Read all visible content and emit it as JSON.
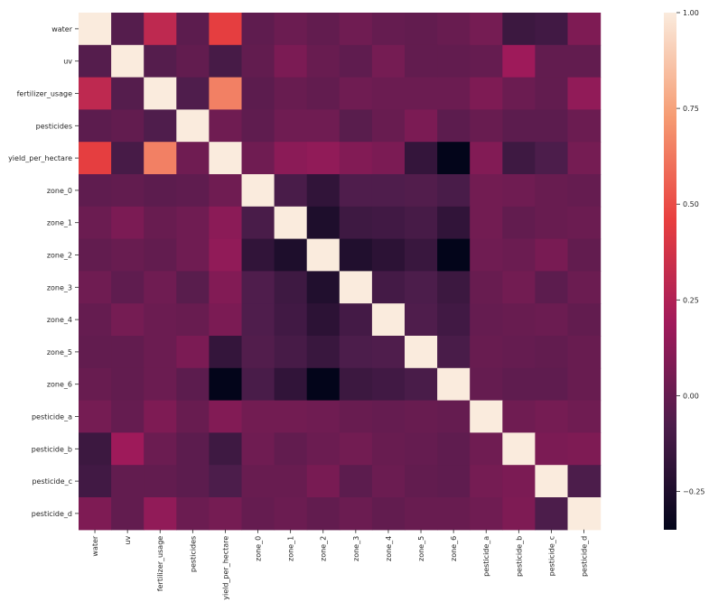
{
  "chart_data": {
    "type": "heatmap",
    "title": "",
    "xlabel": "",
    "ylabel": "",
    "row_labels": [
      "water",
      "uv",
      "fertilizer_usage",
      "pesticides",
      "yield_per_hectare",
      "zone_0",
      "zone_1",
      "zone_2",
      "zone_3",
      "zone_4",
      "zone_5",
      "zone_6",
      "pesticide_a",
      "pesticide_b",
      "pesticide_c",
      "pesticide_d"
    ],
    "col_labels": [
      "water",
      "uv",
      "fertilizer_usage",
      "pesticides",
      "yield_per_hectare",
      "zone_0",
      "zone_1",
      "zone_2",
      "zone_3",
      "zone_4",
      "zone_5",
      "zone_6",
      "pesticide_a",
      "pesticide_b",
      "pesticide_c",
      "pesticide_d"
    ],
    "values": [
      [
        1.0,
        -0.05,
        0.3,
        -0.03,
        0.45,
        -0.02,
        0.02,
        -0.01,
        0.03,
        0.0,
        -0.01,
        0.01,
        0.05,
        -0.14,
        -0.12,
        0.08
      ],
      [
        -0.05,
        1.0,
        -0.05,
        -0.01,
        -0.1,
        -0.01,
        0.07,
        0.01,
        -0.02,
        0.05,
        -0.01,
        -0.01,
        0.0,
        0.18,
        -0.01,
        -0.01
      ],
      [
        0.3,
        -0.05,
        1.0,
        -0.07,
        0.65,
        -0.03,
        0.01,
        -0.01,
        0.03,
        0.02,
        0.02,
        0.02,
        0.08,
        0.02,
        -0.01,
        0.14
      ],
      [
        -0.03,
        -0.01,
        -0.07,
        1.0,
        0.03,
        -0.02,
        0.03,
        0.03,
        -0.04,
        0.01,
        0.07,
        -0.03,
        0.01,
        -0.03,
        -0.03,
        0.02
      ],
      [
        0.45,
        -0.1,
        0.65,
        0.03,
        1.0,
        0.03,
        0.12,
        0.14,
        0.09,
        0.07,
        -0.17,
        -0.35,
        0.09,
        -0.13,
        -0.08,
        0.05
      ],
      [
        -0.02,
        -0.01,
        -0.03,
        -0.02,
        0.03,
        1.0,
        -0.09,
        -0.18,
        -0.07,
        -0.07,
        -0.06,
        -0.09,
        0.04,
        0.03,
        0.01,
        0.0
      ],
      [
        0.02,
        0.07,
        0.01,
        0.03,
        0.12,
        -0.09,
        1.0,
        -0.25,
        -0.13,
        -0.12,
        -0.1,
        -0.18,
        0.04,
        -0.01,
        0.01,
        0.02
      ],
      [
        -0.01,
        0.01,
        -0.01,
        0.03,
        0.14,
        -0.18,
        -0.25,
        1.0,
        -0.24,
        -0.2,
        -0.15,
        -0.35,
        0.03,
        0.02,
        0.06,
        -0.01
      ],
      [
        0.03,
        -0.02,
        0.03,
        -0.04,
        0.09,
        -0.07,
        -0.13,
        -0.24,
        1.0,
        -0.11,
        -0.08,
        -0.14,
        0.01,
        0.04,
        -0.03,
        0.02
      ],
      [
        0.0,
        0.05,
        0.02,
        0.01,
        0.07,
        -0.07,
        -0.12,
        -0.2,
        -0.11,
        1.0,
        -0.07,
        -0.12,
        0.0,
        0.01,
        0.02,
        -0.01
      ],
      [
        -0.01,
        -0.01,
        0.02,
        0.07,
        -0.17,
        -0.06,
        -0.1,
        -0.15,
        -0.08,
        -0.07,
        1.0,
        -0.09,
        0.01,
        0.0,
        -0.01,
        0.01
      ],
      [
        0.01,
        -0.01,
        0.02,
        -0.03,
        -0.35,
        -0.09,
        -0.18,
        -0.35,
        -0.14,
        -0.12,
        -0.09,
        1.0,
        0.0,
        -0.02,
        -0.02,
        0.01
      ],
      [
        0.05,
        0.0,
        0.08,
        0.01,
        0.09,
        0.04,
        0.04,
        0.03,
        0.01,
        0.0,
        0.01,
        0.0,
        1.0,
        0.03,
        0.05,
        0.03
      ],
      [
        -0.14,
        0.18,
        0.02,
        -0.03,
        -0.13,
        0.03,
        -0.01,
        0.02,
        0.04,
        0.01,
        0.0,
        -0.02,
        0.03,
        1.0,
        0.07,
        0.08
      ],
      [
        -0.12,
        -0.01,
        -0.01,
        -0.03,
        -0.08,
        0.01,
        0.01,
        0.06,
        -0.03,
        0.02,
        -0.01,
        -0.02,
        0.05,
        0.07,
        1.0,
        -0.08
      ],
      [
        0.08,
        -0.01,
        0.14,
        0.02,
        0.05,
        0.0,
        0.02,
        -0.01,
        0.02,
        -0.01,
        0.01,
        0.01,
        0.03,
        0.08,
        -0.08,
        1.0
      ]
    ],
    "vmin": -0.35,
    "vmax": 1.0,
    "colorbar": {
      "ticks": [
        1.0,
        0.75,
        0.5,
        0.25,
        0.0,
        -0.25
      ],
      "tick_labels": [
        "1.00",
        "0.75",
        "0.50",
        "0.25",
        "0.00",
        "−0.25"
      ],
      "colormap": "rocket",
      "colormap_stops": [
        "#03051a",
        "#4c1d4b",
        "#a11a5b",
        "#e83f3f",
        "#f69c73",
        "#faebdd"
      ]
    },
    "grid": false,
    "legend": "colorbar-right"
  }
}
